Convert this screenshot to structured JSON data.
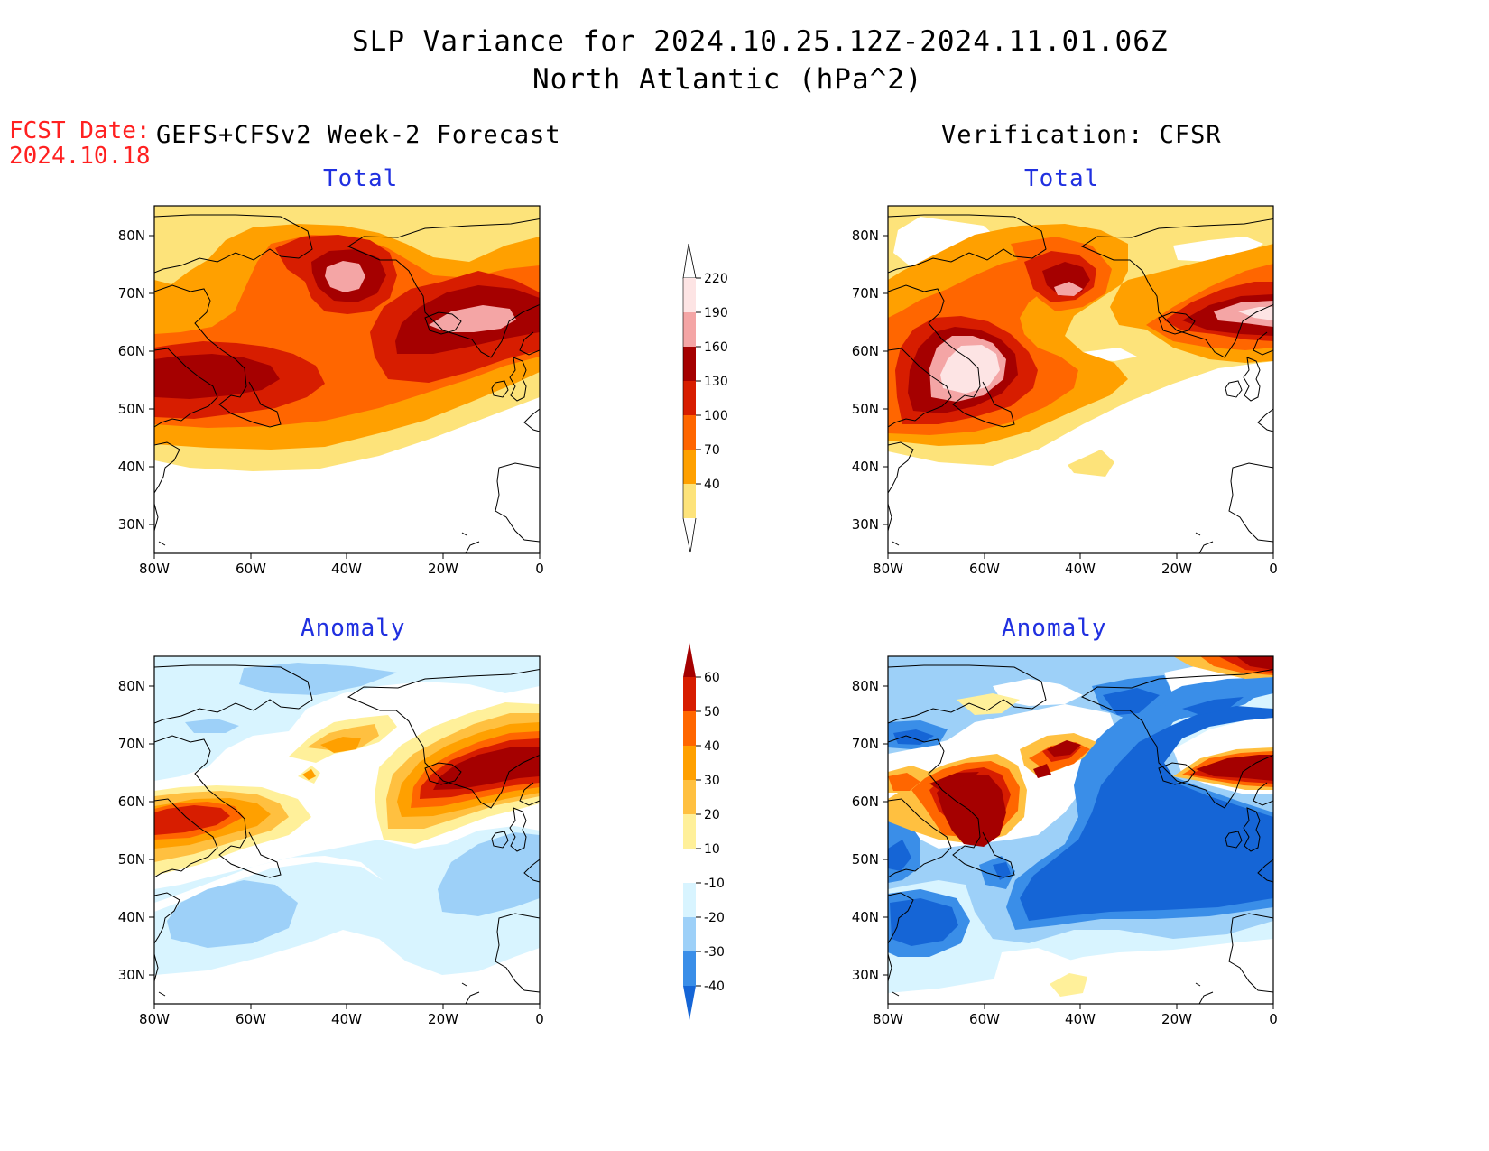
{
  "title": {
    "line1": "SLP Variance for 2024.10.25.12Z-2024.11.01.06Z",
    "line2": "North Atlantic (hPa^2)"
  },
  "fcst_date": {
    "label": "FCST Date:",
    "value": "2024.10.18"
  },
  "columns": {
    "left": "GEFS+CFSv2 Week-2 Forecast",
    "right": "Verification: CFSR"
  },
  "panel_titles": {
    "forecast_total": "Total",
    "verification_total": "Total",
    "forecast_anomaly": "Anomaly",
    "verification_anomaly": "Anomaly"
  },
  "axes": {
    "lat_labels": [
      "80N",
      "70N",
      "60N",
      "50N",
      "40N",
      "30N"
    ],
    "lon_labels": [
      "80W",
      "60W",
      "40W",
      "20W",
      "0"
    ]
  },
  "colorbars": {
    "total": {
      "levels": [
        "220",
        "190",
        "160",
        "130",
        "100",
        "70",
        "40"
      ],
      "colors": [
        "#fde4e4",
        "#f4a5a5",
        "#a50000",
        "#d71d00",
        "#ff6600",
        "#ffa000",
        "#fde37a",
        "#ffffff"
      ]
    },
    "anomaly": {
      "levels": [
        "60",
        "50",
        "40",
        "30",
        "20",
        "10",
        "-10",
        "-20",
        "-30",
        "-40"
      ],
      "colors": [
        "#a50000",
        "#d71d00",
        "#ff6600",
        "#ffa000",
        "#ffc040",
        "#fff09a",
        "#ffffff",
        "#d8f4ff",
        "#9dd0f8",
        "#3a8ee8",
        "#1565d6"
      ]
    }
  }
}
